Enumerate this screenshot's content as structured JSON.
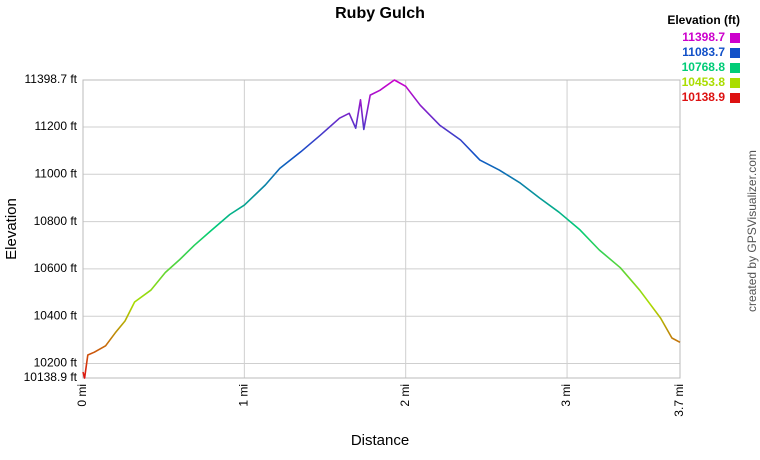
{
  "chart_data": {
    "type": "line",
    "title": "Ruby Gulch",
    "x_label": "Distance",
    "y_label": "Elevation",
    "credit": "created by GPSVisualizer.com",
    "xlim": [
      0,
      3.7
    ],
    "ylim": [
      10138.9,
      11398.7
    ],
    "xticks": [
      {
        "value": 0,
        "label": "0 mi"
      },
      {
        "value": 1,
        "label": "1 mi"
      },
      {
        "value": 2,
        "label": "2 mi"
      },
      {
        "value": 3,
        "label": "3 mi"
      },
      {
        "value": 3.7,
        "label": "3.7 mi"
      }
    ],
    "yticks": [
      {
        "value": 10138.9,
        "label": "10138.9 ft"
      },
      {
        "value": 10200,
        "label": "10200 ft"
      },
      {
        "value": 10400,
        "label": "10400 ft"
      },
      {
        "value": 10600,
        "label": "10600 ft"
      },
      {
        "value": 10800,
        "label": "10800 ft"
      },
      {
        "value": 11000,
        "label": "11000 ft"
      },
      {
        "value": 11200,
        "label": "11200 ft"
      },
      {
        "value": 11398.7,
        "label": "11398.7 ft"
      }
    ],
    "grid": true,
    "legend": {
      "title": "Elevation (ft)",
      "items": [
        {
          "value": 11398.7,
          "color": "#cc00cc"
        },
        {
          "value": 11083.7,
          "color": "#1150c8"
        },
        {
          "value": 10768.8,
          "color": "#00cc77"
        },
        {
          "value": 10453.8,
          "color": "#aadd00"
        },
        {
          "value": 10138.9,
          "color": "#dd1111"
        }
      ]
    },
    "x": [
      0,
      0.01,
      0.03,
      0.07,
      0.14,
      0.2,
      0.26,
      0.32,
      0.42,
      0.51,
      0.6,
      0.69,
      0.79,
      0.91,
      1.0,
      1.13,
      1.22,
      1.35,
      1.47,
      1.59,
      1.65,
      1.69,
      1.72,
      1.74,
      1.78,
      1.84,
      1.93,
      2.0,
      2.09,
      2.21,
      2.34,
      2.46,
      2.58,
      2.71,
      2.83,
      2.95,
      3.08,
      3.2,
      3.33,
      3.45,
      3.58,
      3.65,
      3.7
    ],
    "y": [
      10164,
      10138.9,
      10236,
      10248,
      10275,
      10330,
      10380,
      10460,
      10510,
      10585,
      10640,
      10700,
      10760,
      10830,
      10870,
      10955,
      11025,
      11095,
      11165,
      11237,
      11258,
      11195,
      11315,
      11190,
      11335,
      11355,
      11398.7,
      11372,
      11292,
      11208,
      11145,
      11060,
      11018,
      10963,
      10900,
      10840,
      10765,
      10680,
      10605,
      10510,
      10392,
      10308,
      10290
    ]
  }
}
